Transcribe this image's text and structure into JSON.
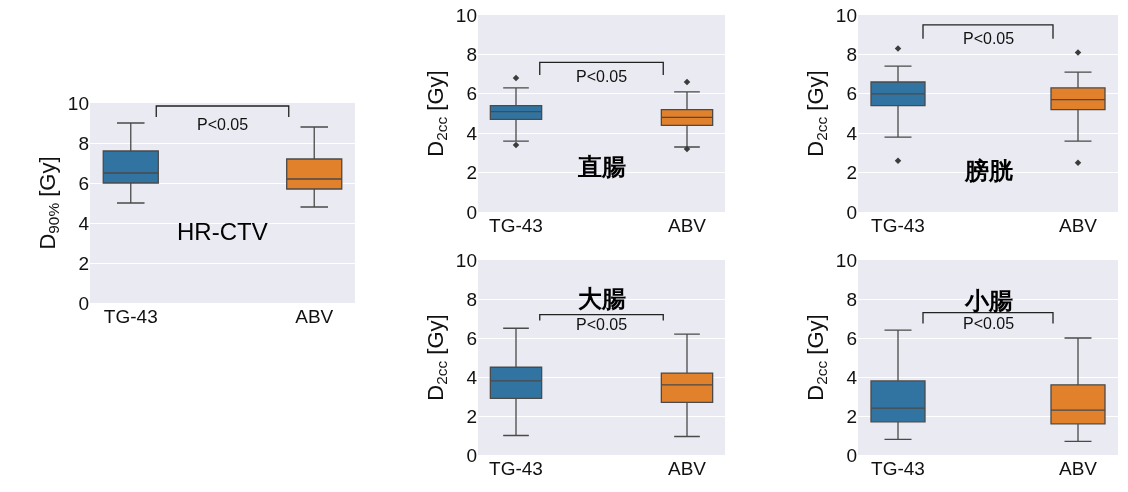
{
  "chart_data": [
    {
      "type": "box",
      "title": "HR-CTV",
      "ylabel": "D$_{90%}$ [Gy]",
      "categories": [
        "TG-43",
        "ABV"
      ],
      "colors": [
        "#3274a1",
        "#e1812c"
      ],
      "ylim": [
        0,
        10
      ],
      "yticks": [
        0,
        2,
        4,
        6,
        8,
        10
      ],
      "grid": "y",
      "annotations": [
        "P<0.05"
      ],
      "boxes": [
        {
          "low": 5.0,
          "q1": 6.0,
          "median": 6.5,
          "q3": 7.6,
          "high": 9.0
        },
        {
          "low": 4.8,
          "q1": 5.7,
          "median": 6.2,
          "q3": 7.2,
          "high": 8.8
        }
      ]
    },
    {
      "type": "box",
      "title": "直腸",
      "ylabel": "D$_{2cc}$ [Gy]",
      "categories": [
        "TG-43",
        "ABV"
      ],
      "colors": [
        "#3274a1",
        "#e1812c"
      ],
      "ylim": [
        0,
        10
      ],
      "yticks": [
        0,
        2,
        4,
        6,
        8,
        10
      ],
      "grid": "y",
      "marker": "diamond",
      "annotations": [
        "P<0.05"
      ],
      "boxes": [
        {
          "low": 3.6,
          "q1": 4.7,
          "median": 5.1,
          "q3": 5.4,
          "high": 6.3,
          "outliers": [
            6.8,
            3.4
          ]
        },
        {
          "low": 3.3,
          "q1": 4.4,
          "median": 4.8,
          "q3": 5.2,
          "high": 6.1,
          "outliers": [
            6.6,
            3.2
          ]
        }
      ]
    },
    {
      "type": "box",
      "title": "膀胱",
      "ylabel": "D$_{2cc}$ [Gy]",
      "categories": [
        "TG-43",
        "ABV"
      ],
      "colors": [
        "#3274a1",
        "#e1812c"
      ],
      "ylim": [
        0,
        10
      ],
      "yticks": [
        0,
        2,
        4,
        6,
        8,
        10
      ],
      "grid": "y",
      "marker": "diamond",
      "annotations": [
        "P<0.05"
      ],
      "boxes": [
        {
          "low": 3.8,
          "q1": 5.4,
          "median": 6.0,
          "q3": 6.6,
          "high": 7.4,
          "outliers": [
            8.3,
            2.6
          ]
        },
        {
          "low": 3.6,
          "q1": 5.2,
          "median": 5.7,
          "q3": 6.3,
          "high": 7.1,
          "outliers": [
            8.1,
            2.5
          ]
        }
      ]
    },
    {
      "type": "box",
      "title": "大腸",
      "ylabel": "D$_{2cc}$ [Gy]",
      "categories": [
        "TG-43",
        "ABV"
      ],
      "colors": [
        "#3274a1",
        "#e1812c"
      ],
      "ylim": [
        0,
        10
      ],
      "yticks": [
        0,
        2,
        4,
        6,
        8,
        10
      ],
      "grid": "y",
      "annotations": [
        "P<0.05"
      ],
      "boxes": [
        {
          "low": 1.0,
          "q1": 2.9,
          "median": 3.8,
          "q3": 4.5,
          "high": 6.5
        },
        {
          "low": 0.95,
          "q1": 2.7,
          "median": 3.6,
          "q3": 4.2,
          "high": 6.2
        }
      ]
    },
    {
      "type": "box",
      "title": "小腸",
      "ylabel": "D$_{2cc}$ [Gy]",
      "categories": [
        "TG-43",
        "ABV"
      ],
      "colors": [
        "#3274a1",
        "#e1812c"
      ],
      "ylim": [
        0,
        10
      ],
      "yticks": [
        0,
        2,
        4,
        6,
        8,
        10
      ],
      "grid": "y",
      "annotations": [
        "P<0.05"
      ],
      "boxes": [
        {
          "low": 0.8,
          "q1": 1.7,
          "median": 2.4,
          "q3": 3.8,
          "high": 6.4
        },
        {
          "low": 0.7,
          "q1": 1.6,
          "median": 2.3,
          "q3": 3.6,
          "high": 6.0
        }
      ]
    }
  ]
}
